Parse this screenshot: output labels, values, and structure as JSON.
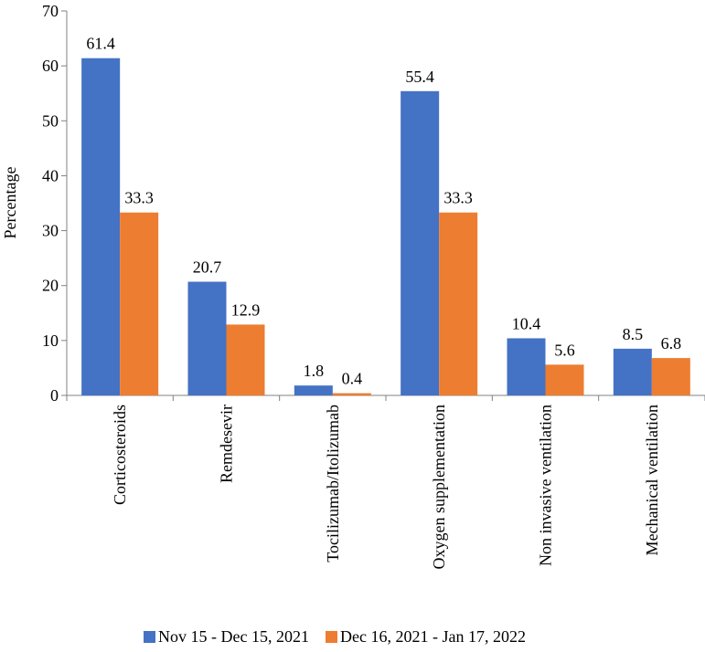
{
  "chart_data": {
    "type": "bar",
    "title": "",
    "xlabel": "",
    "ylabel": "Percentage",
    "ylim": [
      0,
      70
    ],
    "yticks": [
      0,
      10,
      20,
      30,
      40,
      50,
      60,
      70
    ],
    "grid": false,
    "legend_position": "bottom",
    "categories": [
      "Corticosteroids",
      "Remdesevir",
      "Tocilizumab/Itolizumab",
      "Oxygen supplementation",
      "Non invasive ventilation",
      "Mechanical ventilation"
    ],
    "series": [
      {
        "name": "Nov 15 - Dec 15, 2021",
        "color": "#4472C4",
        "values": [
          61.4,
          20.7,
          1.8,
          55.4,
          10.4,
          8.5
        ],
        "labels": [
          "61.4",
          "20.7",
          "1.8",
          "55.4",
          "10.4",
          "8.5"
        ]
      },
      {
        "name": "Dec 16, 2021 - Jan 17, 2022",
        "color": "#ED7D31",
        "values": [
          33.3,
          12.9,
          0.4,
          33.3,
          5.6,
          6.8
        ],
        "labels": [
          "33.3",
          "12.9",
          "0.4",
          "33.3",
          "5.6",
          "6.8"
        ]
      }
    ]
  }
}
